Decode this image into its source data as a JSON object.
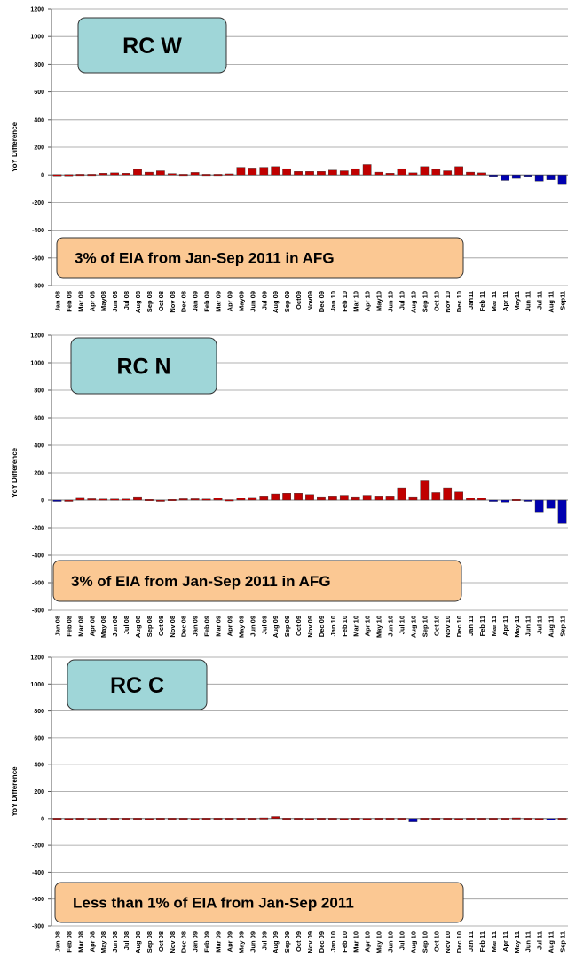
{
  "chart_data": [
    {
      "type": "bar",
      "title": "RC W",
      "annotation": "3% of EIA from Jan-Sep 2011 in AFG",
      "ylabel": "YoY Difference",
      "categories": [
        "Jan 08",
        "Feb 08",
        "Mar 08",
        "Apr 08",
        "May08",
        "Jun 08",
        "Jul 08",
        "Aug 08",
        "Sep 08",
        "Oct 08",
        "Nov 08",
        "Dec 08",
        "Jan 09",
        "Feb 09",
        "Mar 09",
        "Apr 09",
        "May09",
        "Jun 09",
        "Jul 09",
        "Aug 09",
        "Sep 09",
        "Oct09",
        "Nov09",
        "Dec 09",
        "Jan 10",
        "Feb 10",
        "Mar 10",
        "Apr 10",
        "May10",
        "Jun 10",
        "Jul 10",
        "Aug 10",
        "Sep 10",
        "Oct 10",
        "Nov 10",
        "Dec 10",
        "Jan11",
        "Feb 11",
        "Mar 11",
        "Apr 11",
        "May11",
        "Jun 11",
        "Jul 11",
        "Aug 11",
        "Sep11"
      ],
      "values": [
        3,
        3,
        5,
        5,
        12,
        15,
        12,
        40,
        20,
        30,
        10,
        5,
        18,
        5,
        5,
        8,
        55,
        50,
        55,
        60,
        45,
        25,
        25,
        25,
        35,
        30,
        45,
        75,
        20,
        12,
        45,
        15,
        60,
        40,
        30,
        60,
        20,
        15,
        -5,
        -40,
        -25,
        -10,
        -45,
        -35,
        -70
      ],
      "color": "#c00000",
      "negative_color": "#0000b0",
      "ylim": [
        -800,
        1200
      ],
      "yticks": [
        -800,
        -600,
        -400,
        -200,
        0,
        200,
        400,
        600,
        800,
        1000,
        1200
      ],
      "grid": true
    },
    {
      "type": "bar",
      "title": "RC N",
      "annotation": "3% of EIA from Jan-Sep 2011 in AFG",
      "ylabel": "YoY Difference",
      "categories": [
        "Jan 08",
        "Feb 08",
        "Mar 08",
        "Apr 08",
        "May 08",
        "Jun 08",
        "Jul 08",
        "Aug 08",
        "Sep 08",
        "Oct 08",
        "Nov 08",
        "Dec 08",
        "Jan 09",
        "Feb 09",
        "Mar 09",
        "Apr 09",
        "May 09",
        "Jun 09",
        "Jul 09",
        "Aug 09",
        "Sep 09",
        "Oct 09",
        "Nov 09",
        "Dec 09",
        "Jan 10",
        "Feb 10",
        "Mar 10",
        "Apr 10",
        "May 10",
        "Jun 10",
        "Jul 10",
        "Aug 10",
        "Sep 10",
        "Oct 10",
        "Nov 10",
        "Dec 10",
        "Jan 11",
        "Feb 11",
        "Mar 11",
        "Apr 11",
        "May 11",
        "Jun 11",
        "Jul 11",
        "Aug 11",
        "Sep 11"
      ],
      "values": [
        -5,
        0,
        20,
        10,
        8,
        8,
        8,
        25,
        5,
        0,
        5,
        10,
        10,
        8,
        15,
        3,
        15,
        20,
        30,
        45,
        50,
        50,
        40,
        25,
        30,
        35,
        25,
        35,
        30,
        30,
        90,
        25,
        145,
        55,
        90,
        60,
        15,
        15,
        -10,
        -15,
        5,
        -5,
        -85,
        -60,
        -170
      ],
      "color": "#c00000",
      "negative_color": "#0000b0",
      "ylim": [
        -800,
        1200
      ],
      "yticks": [
        -800,
        -600,
        -400,
        -200,
        0,
        200,
        400,
        600,
        800,
        1000,
        1200
      ],
      "grid": true
    },
    {
      "type": "bar",
      "title": "RC C",
      "annotation": "Less than 1% of EIA from Jan-Sep 2011",
      "ylabel": "YoY Difference",
      "categories": [
        "Jan 08",
        "Feb 08",
        "Mar 08",
        "Apr 08",
        "May 08",
        "Jun 08",
        "Jul 08",
        "Aug 08",
        "Sep 08",
        "Oct 08",
        "Nov 08",
        "Dec 08",
        "Jan 09",
        "Feb 09",
        "Mar 09",
        "Apr 09",
        "May 09",
        "Jun 09",
        "Jul 09",
        "Aug 09",
        "Sep 09",
        "Oct 09",
        "Nov 09",
        "Dec 09",
        "Jan 10",
        "Feb 10",
        "Mar 10",
        "Apr 10",
        "May 10",
        "Jun 10",
        "Jul 10",
        "Aug 10",
        "Sep 10",
        "Oct 10",
        "Nov 10",
        "Dec 10",
        "Jan 11",
        "Feb 11",
        "Mar 11",
        "Apr 11",
        "May 11",
        "Jun 11",
        "Jul 11",
        "Aug 11",
        "Sep 11"
      ],
      "values": [
        3,
        2,
        3,
        2,
        3,
        3,
        3,
        3,
        2,
        3,
        3,
        3,
        2,
        3,
        3,
        3,
        3,
        3,
        5,
        15,
        3,
        3,
        2,
        3,
        3,
        2,
        3,
        2,
        3,
        3,
        3,
        -25,
        3,
        3,
        3,
        2,
        3,
        3,
        3,
        3,
        5,
        3,
        2,
        -5,
        3
      ],
      "color": "#c00000",
      "negative_color": "#0000b0",
      "ylim": [
        -800,
        1200
      ],
      "yticks": [
        -800,
        -600,
        -400,
        -200,
        0,
        200,
        400,
        600,
        800,
        1000,
        1200
      ],
      "grid": true
    }
  ]
}
